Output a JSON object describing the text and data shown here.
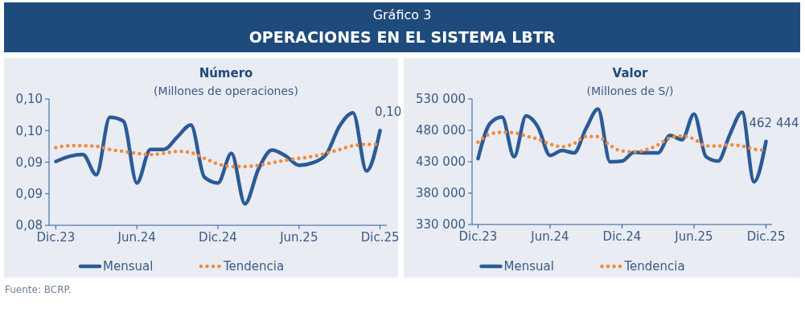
{
  "chart_data": [
    {
      "type": "line",
      "title": "Número",
      "subtitle": "(Millones de operaciones)",
      "annotations": [
        "Gráfico 3",
        "OPERACIONES EN EL SISTEMA LBTR",
        "Fuente: BCRP."
      ],
      "categories": [
        "Dic.23",
        null,
        null,
        null,
        null,
        null,
        "Jun.24",
        null,
        null,
        null,
        null,
        null,
        "Dic.24",
        null,
        null,
        null,
        null,
        null,
        "Jun.25",
        null,
        null,
        null,
        null,
        null,
        "Dic.25"
      ],
      "ylim": [
        0.08,
        0.1
      ],
      "yticks": [
        {
          "value": 0.08,
          "label": "0,08"
        },
        {
          "value": 0.085,
          "label": "0,09"
        },
        {
          "value": 0.09,
          "label": "0,09"
        },
        {
          "value": 0.095,
          "label": "0,10"
        },
        {
          "value": 0.1,
          "label": "0,10"
        }
      ],
      "series": [
        {
          "name": "Mensual",
          "color": "#2a5b97",
          "line_style": "solid",
          "values": [
            0.0901,
            0.0909,
            0.0912,
            0.088,
            0.0971,
            0.0965,
            0.0867,
            0.092,
            0.092,
            0.094,
            0.0959,
            0.0876,
            0.0867,
            0.0914,
            0.0834,
            0.0889,
            0.0919,
            0.091,
            0.0895,
            0.0899,
            0.0912,
            0.0957,
            0.0978,
            0.0886,
            0.095
          ],
          "value_labels": [
            null,
            null,
            null,
            null,
            null,
            null,
            null,
            null,
            null,
            null,
            null,
            null,
            null,
            null,
            null,
            null,
            null,
            null,
            null,
            null,
            null,
            null,
            null,
            null,
            "0,10"
          ]
        },
        {
          "name": "Tendencia",
          "color": "#f08a3c",
          "line_style": "dotted",
          "values": [
            0.0923,
            0.0926,
            0.0926,
            0.0925,
            0.092,
            0.0917,
            0.0914,
            0.0912,
            0.0914,
            0.0917,
            0.0915,
            0.0906,
            0.0897,
            0.0893,
            0.0893,
            0.0895,
            0.0899,
            0.0903,
            0.0906,
            0.0909,
            0.0914,
            0.092,
            0.0926,
            0.0928,
            0.0928
          ]
        }
      ],
      "legend": "bottom",
      "grid": false
    },
    {
      "type": "line",
      "title": "Valor",
      "subtitle": "(Millones de S/)",
      "categories": [
        "Dic.23",
        null,
        null,
        null,
        null,
        null,
        "Jun.24",
        null,
        null,
        null,
        null,
        null,
        "Dic.24",
        null,
        null,
        null,
        null,
        null,
        "Jun.25",
        null,
        null,
        null,
        null,
        null,
        "Dic.25"
      ],
      "ylim": [
        330000,
        530000
      ],
      "yticks": [
        {
          "value": 330000,
          "label": "330 000"
        },
        {
          "value": 380000,
          "label": "380 000"
        },
        {
          "value": 430000,
          "label": "430 000"
        },
        {
          "value": 480000,
          "label": "480 000"
        },
        {
          "value": 530000,
          "label": "530 000"
        }
      ],
      "series": [
        {
          "name": "Mensual",
          "color": "#2a5b97",
          "line_style": "solid",
          "values": [
            435000,
            491000,
            501000,
            438000,
            503000,
            485000,
            440000,
            448000,
            444000,
            483000,
            514000,
            430000,
            431000,
            445000,
            444000,
            444000,
            472000,
            465000,
            506000,
            438000,
            431000,
            474000,
            509000,
            398000,
            462444
          ],
          "value_labels": [
            null,
            null,
            null,
            null,
            null,
            null,
            null,
            null,
            null,
            null,
            null,
            null,
            null,
            null,
            null,
            null,
            null,
            null,
            null,
            null,
            null,
            null,
            null,
            null,
            "462 444"
          ]
        },
        {
          "name": "Tendencia",
          "color": "#f08a3c",
          "line_style": "dotted",
          "values": [
            461000,
            474000,
            477000,
            476000,
            471000,
            466000,
            458000,
            454000,
            459000,
            470000,
            470000,
            456000,
            447000,
            446000,
            449000,
            457000,
            468000,
            471000,
            466000,
            455000,
            455000,
            457000,
            455000,
            450000,
            448000
          ]
        }
      ],
      "legend": "bottom",
      "grid": false
    }
  ]
}
